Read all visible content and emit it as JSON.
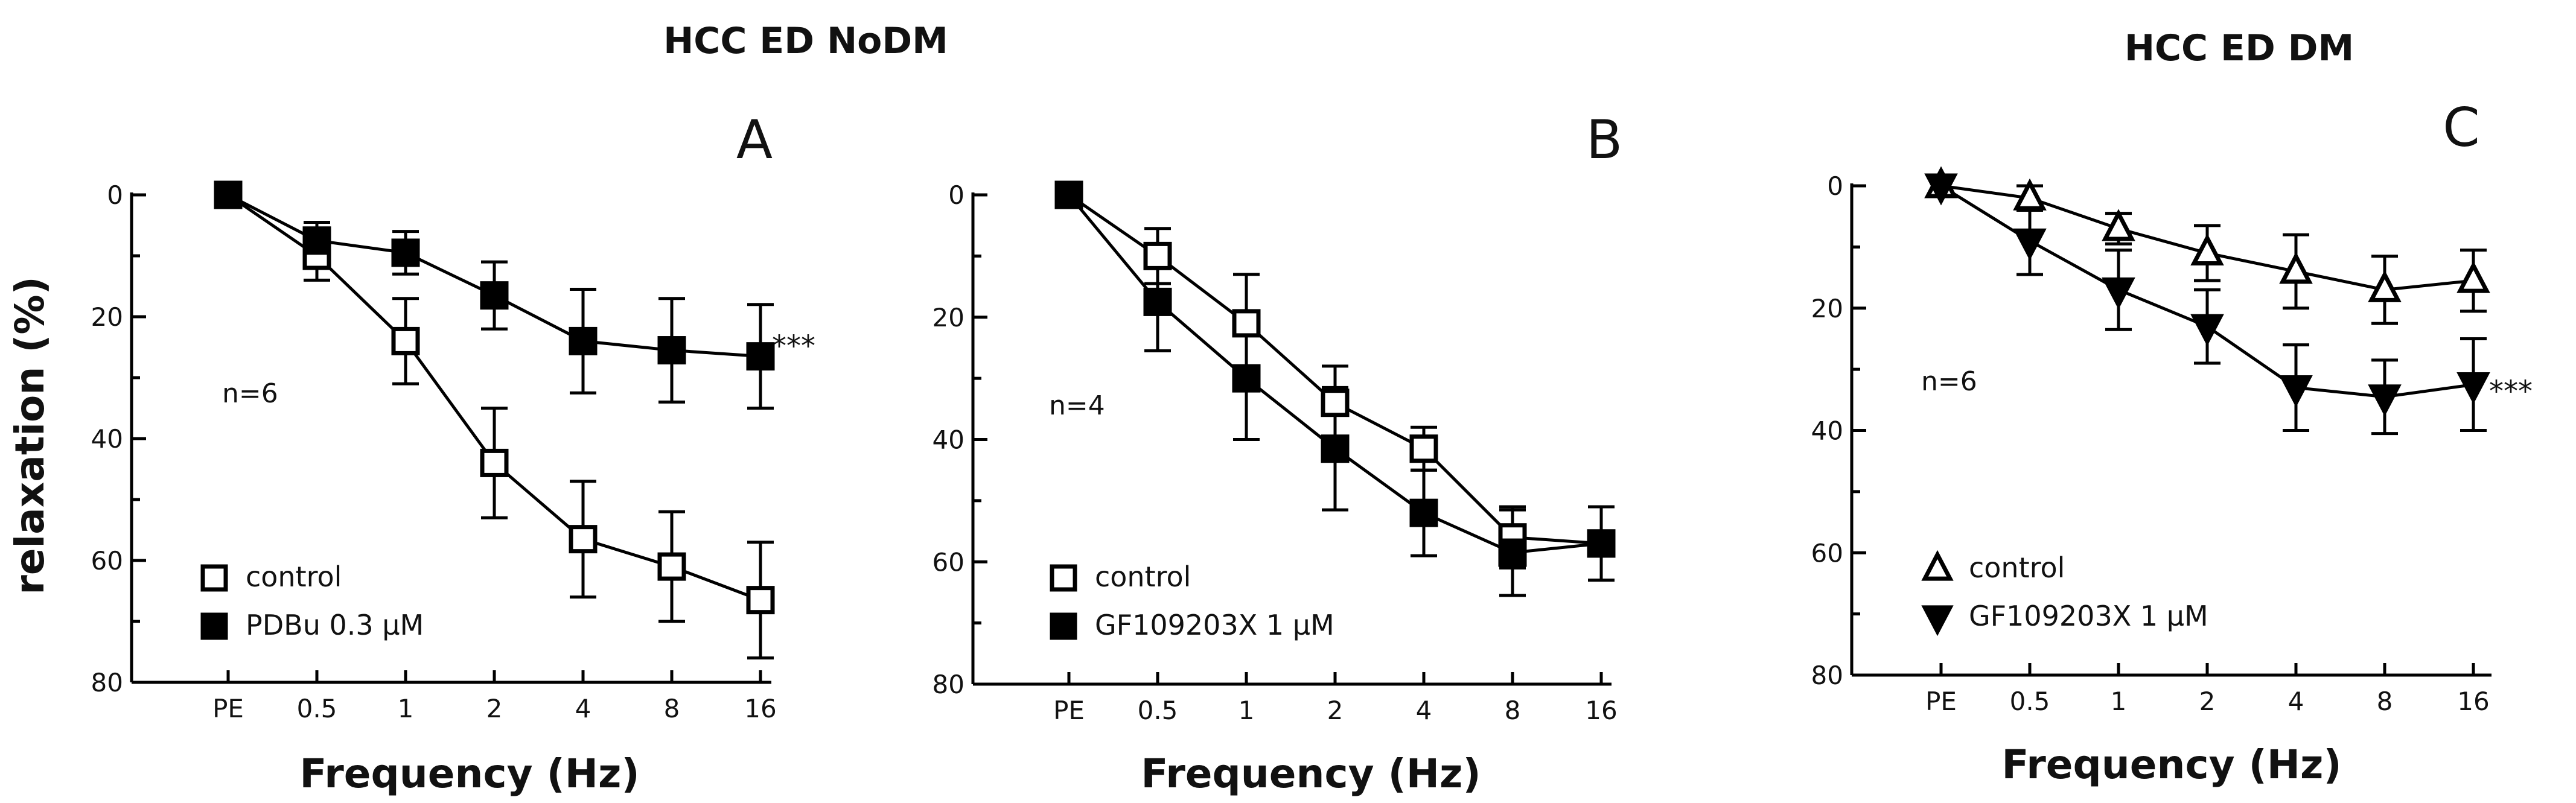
{
  "figure_titles": [
    "HCC ED NoDM",
    "HCC ED DM"
  ],
  "ylabel": "relaxation (%)",
  "chart_data": [
    {
      "type": "line",
      "panel": "A",
      "group": "HCC ED NoDM",
      "categories": [
        "PE",
        "0.5",
        "1",
        "2",
        "4",
        "8",
        "16"
      ],
      "xlabel": "Frequency (Hz)",
      "ylabel": "relaxation (%)",
      "ylim": [
        0,
        80
      ],
      "yticks": [
        "0",
        "20",
        "40",
        "60",
        "80"
      ],
      "y_inverted": true,
      "n_label": "n=6",
      "significance": "***",
      "series": [
        {
          "name": "control",
          "marker": "open-square",
          "values": [
            0,
            10,
            24,
            44,
            56.5,
            61,
            66.5
          ],
          "errors": [
            0,
            4,
            7,
            9,
            9.5,
            9,
            9.5
          ]
        },
        {
          "name": "PDBu 0.3 µM",
          "marker": "filled-square",
          "values": [
            0,
            7.5,
            9.5,
            16.5,
            24,
            25.5,
            26.5
          ],
          "errors": [
            0,
            3,
            3.5,
            5.5,
            8.5,
            8.5,
            8.5
          ]
        }
      ]
    },
    {
      "type": "line",
      "panel": "B",
      "group": "HCC ED NoDM",
      "categories": [
        "PE",
        "0.5",
        "1",
        "2",
        "4",
        "8",
        "16"
      ],
      "xlabel": "Frequency (Hz)",
      "ylabel": "",
      "ylim": [
        0,
        80
      ],
      "yticks": [
        "0",
        "20",
        "40",
        "60",
        "80"
      ],
      "y_inverted": true,
      "n_label": "n=4",
      "significance": "",
      "series": [
        {
          "name": "control",
          "marker": "open-square",
          "values": [
            0,
            10,
            21,
            34,
            41.5,
            56,
            57
          ],
          "errors": [
            0,
            4.5,
            8,
            6,
            3.5,
            5,
            6
          ]
        },
        {
          "name": "GF109203X 1 µM",
          "marker": "filled-square",
          "values": [
            0,
            17.5,
            30,
            41.5,
            52,
            58.5,
            57
          ],
          "errors": [
            0,
            8,
            10,
            10,
            7,
            7,
            6
          ]
        }
      ]
    },
    {
      "type": "line",
      "panel": "C",
      "group": "HCC ED DM",
      "categories": [
        "PE",
        "0.5",
        "1",
        "2",
        "4",
        "8",
        "16"
      ],
      "xlabel": "Frequency (Hz)",
      "ylabel": "",
      "ylim": [
        0,
        80
      ],
      "yticks": [
        "0",
        "20",
        "40",
        "60",
        "80"
      ],
      "y_inverted": true,
      "n_label": "n=6",
      "significance": "***",
      "series": [
        {
          "name": "control",
          "marker": "open-triangle",
          "values": [
            0,
            2,
            7,
            11,
            14,
            17,
            15.5
          ],
          "errors": [
            0,
            2,
            2.5,
            4.5,
            6,
            5.5,
            5
          ]
        },
        {
          "name": "GF109203X 1 µM",
          "marker": "filled-triangle-down",
          "values": [
            0,
            9,
            17,
            23,
            33,
            34.5,
            32.5
          ],
          "errors": [
            0,
            5.5,
            6.5,
            6,
            7,
            6,
            7.5
          ]
        }
      ]
    }
  ]
}
